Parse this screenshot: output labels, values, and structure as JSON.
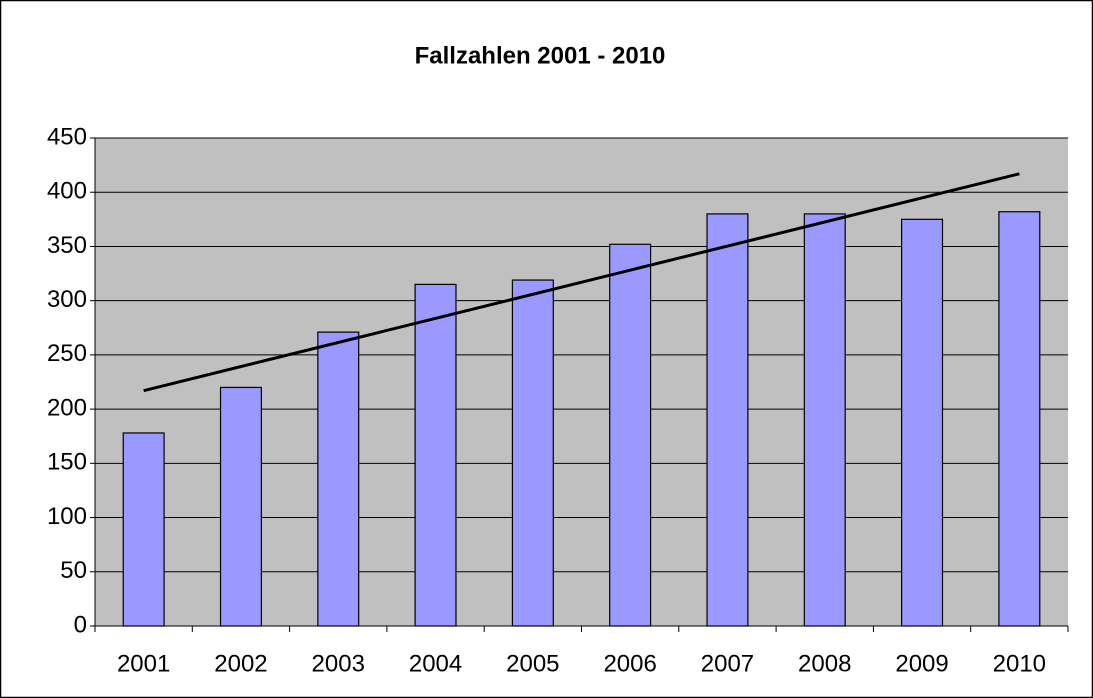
{
  "chart_data": {
    "type": "bar",
    "title": "Fallzahlen 2001 - 2010",
    "categories": [
      "2001",
      "2002",
      "2003",
      "2004",
      "2005",
      "2006",
      "2007",
      "2008",
      "2009",
      "2010"
    ],
    "values": [
      178,
      220,
      271,
      315,
      319,
      352,
      380,
      380,
      375,
      382
    ],
    "color": "#9999ff",
    "trendline": {
      "values": [
        217,
        417
      ],
      "color": "#000000"
    },
    "ylim": [
      0,
      450
    ],
    "yticks": [
      0,
      50,
      100,
      150,
      200,
      250,
      300,
      350,
      400,
      450
    ],
    "grid": true,
    "plot_background": "#c0c0c0"
  }
}
